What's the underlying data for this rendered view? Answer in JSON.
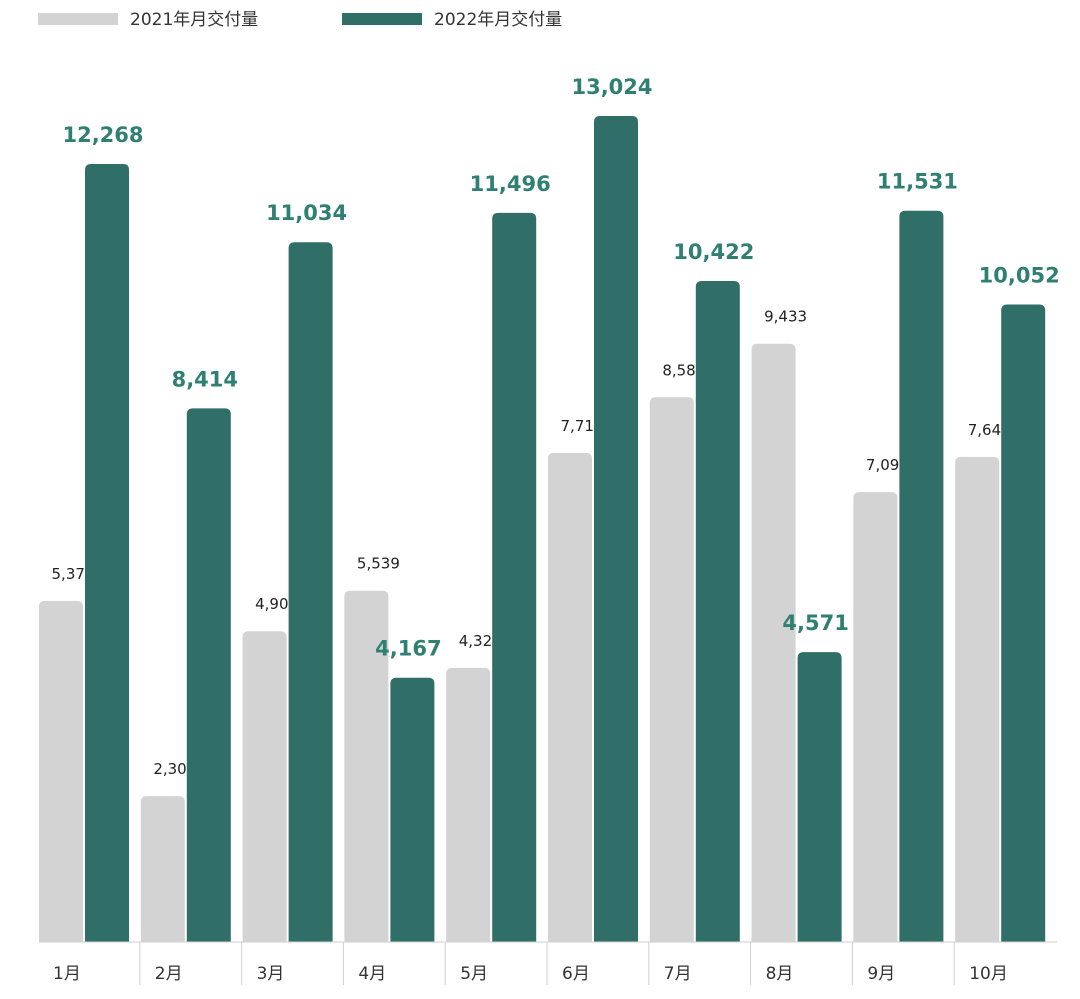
{
  "chart_data": {
    "type": "bar",
    "title": "",
    "xlabel": "",
    "ylabel": "",
    "categories": [
      "1月",
      "2月",
      "3月",
      "4月",
      "5月",
      "6月",
      "7月",
      "8月",
      "9月",
      "10月"
    ],
    "series": [
      {
        "name": "2021年月交付量",
        "color": "#d3d3d3",
        "label_color": "#222222",
        "values": [
          5379,
          2300,
          4900,
          5539,
          4323,
          7713,
          8589,
          9433,
          7094,
          7649
        ],
        "labels": [
          "5,379",
          "2,300",
          "4,900",
          "5,539",
          "4,323",
          "7,713",
          "8,589",
          "9,433",
          "7,094",
          "7,649"
        ]
      },
      {
        "name": "2022年月交付量",
        "color": "#2f6f67",
        "label_color": "#2f7f73",
        "values": [
          12268,
          8414,
          11034,
          4167,
          11496,
          13024,
          10422,
          4571,
          11531,
          10052
        ],
        "labels": [
          "12,268",
          "8,414",
          "11,034",
          "4,167",
          "11,496",
          "13,024",
          "10,422",
          "4,571",
          "11,531",
          "10,052"
        ]
      }
    ],
    "ylim": [
      0,
      13024
    ],
    "grid": false,
    "legend_position": "top-left"
  }
}
